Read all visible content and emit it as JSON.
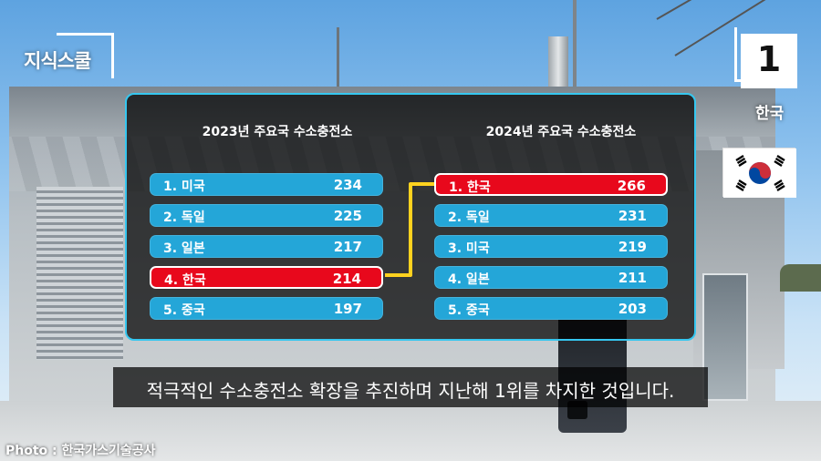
{
  "channel": {
    "name": "지식스쿨"
  },
  "table": {
    "left": {
      "title": "2023년 주요국 수소충전소",
      "rows": [
        {
          "label": "1. 미국",
          "value": "234",
          "highlight": false
        },
        {
          "label": "2. 독일",
          "value": "225",
          "highlight": false
        },
        {
          "label": "3. 일본",
          "value": "217",
          "highlight": false
        },
        {
          "label": "4. 한국",
          "value": "214",
          "highlight": true
        },
        {
          "label": "5. 중국",
          "value": "197",
          "highlight": false
        }
      ]
    },
    "right": {
      "title": "2024년 주요국 수소충전소",
      "rows": [
        {
          "label": "1. 한국",
          "value": "266",
          "highlight": true
        },
        {
          "label": "2. 독일",
          "value": "231",
          "highlight": false
        },
        {
          "label": "3. 미국",
          "value": "219",
          "highlight": false
        },
        {
          "label": "4. 일본",
          "value": "211",
          "highlight": false
        },
        {
          "label": "5. 중국",
          "value": "203",
          "highlight": false
        }
      ]
    }
  },
  "rank_badge": {
    "number": "1",
    "country": "한국"
  },
  "subtitle": "적극적인 수소충전소 확장을 추진하며 지난해 1위를 차지한 것입니다.",
  "credit": "Photo : 한국가스기술공사",
  "colors": {
    "row_blue": "#24a6d8",
    "row_red": "#e8081c",
    "connector": "#ffd21f",
    "panel_border": "#35c7f0"
  }
}
